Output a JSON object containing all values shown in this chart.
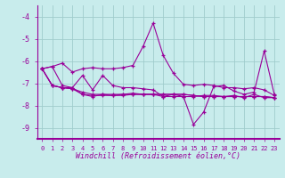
{
  "xlabel": "Windchill (Refroidissement éolien,°C)",
  "background_color": "#c8ecec",
  "line_color": "#990099",
  "grid_color": "#b0d8d8",
  "xlim": [
    -0.5,
    23.5
  ],
  "ylim": [
    -9.5,
    -3.5
  ],
  "yticks": [
    -9,
    -8,
    -7,
    -6,
    -5,
    -4
  ],
  "xticks": [
    0,
    1,
    2,
    3,
    4,
    5,
    6,
    7,
    8,
    9,
    10,
    11,
    12,
    13,
    14,
    15,
    16,
    17,
    18,
    19,
    20,
    21,
    22,
    23
  ],
  "series": [
    [
      -6.35,
      -6.25,
      -6.1,
      -6.5,
      -6.35,
      -6.3,
      -6.35,
      -6.35,
      -6.3,
      -6.2,
      -5.35,
      -4.3,
      -5.75,
      -6.55,
      -7.05,
      -7.1,
      -7.05,
      -7.1,
      -7.2,
      -7.2,
      -7.25,
      -7.2,
      -7.3,
      -7.55
    ],
    [
      -6.35,
      -6.25,
      -7.1,
      -7.2,
      -6.65,
      -7.3,
      -6.65,
      -7.1,
      -7.2,
      -7.2,
      -7.25,
      -7.3,
      -7.6,
      -7.5,
      -7.6,
      -8.85,
      -8.3,
      -7.15,
      -7.1,
      -7.35,
      -7.5,
      -7.4,
      -5.55,
      -7.5
    ],
    [
      -6.35,
      -7.1,
      -7.2,
      -7.2,
      -7.5,
      -7.6,
      -7.5,
      -7.55,
      -7.5,
      -7.45,
      -7.5,
      -7.5,
      -7.6,
      -7.6,
      -7.6,
      -7.6,
      -7.55,
      -7.55,
      -7.6,
      -7.55,
      -7.65,
      -7.5,
      -7.65,
      -7.65
    ],
    [
      -6.35,
      -7.1,
      -7.2,
      -7.25,
      -7.4,
      -7.5,
      -7.5,
      -7.5,
      -7.5,
      -7.5,
      -7.5,
      -7.5,
      -7.5,
      -7.5,
      -7.5,
      -7.55,
      -7.6,
      -7.6,
      -7.6,
      -7.6,
      -7.6,
      -7.6,
      -7.6,
      -7.65
    ],
    [
      -6.35,
      -7.1,
      -7.2,
      -7.25,
      -7.5,
      -7.55,
      -7.55,
      -7.55,
      -7.55,
      -7.5,
      -7.5,
      -7.5,
      -7.5,
      -7.5,
      -7.5,
      -7.55,
      -7.6,
      -7.6,
      -7.6,
      -7.6,
      -7.6,
      -7.6,
      -7.6,
      -7.65
    ]
  ]
}
